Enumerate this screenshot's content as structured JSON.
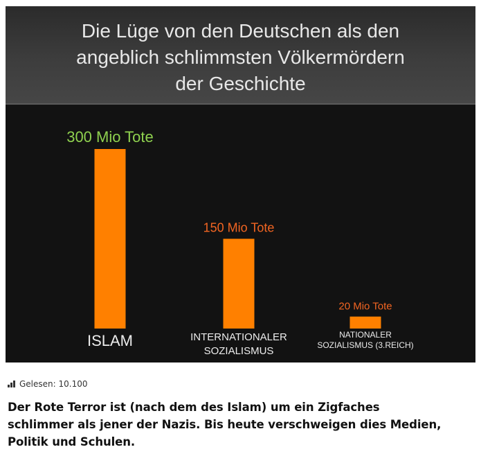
{
  "slide": {
    "title_lines": [
      "Die Lüge von den Deutschen als den",
      "angeblich schlimmsten Völkermördern",
      "der Geschichte"
    ]
  },
  "chart_data": {
    "type": "bar",
    "categories": [
      [
        "ISLAM"
      ],
      [
        "INTERNATIONALER",
        "SOZIALISMUS"
      ],
      [
        "NATIONALER",
        "SOZIALISMUS (3.REICH)"
      ]
    ],
    "values": [
      300,
      150,
      20
    ],
    "value_labels": [
      "300 Mio Tote",
      "150 Mio Tote",
      "20 Mio Tote"
    ],
    "unit": "Mio Tote",
    "ylim": [
      0,
      300
    ],
    "grid": false,
    "colors": {
      "bar": "#ff8000",
      "first_value_label": "#8fd14f",
      "other_value_labels": "#f26522",
      "category_labels": "#ececec"
    }
  },
  "meta": {
    "read_label": "Gelesen: 10.100"
  },
  "caption": {
    "lines": [
      "Der Rote Terror ist (nach dem des Islam) um ein Zigfaches",
      "schlimmer als jener der Nazis. Bis heute verschweigen dies  Medien,",
      "Politik und Schulen."
    ]
  }
}
